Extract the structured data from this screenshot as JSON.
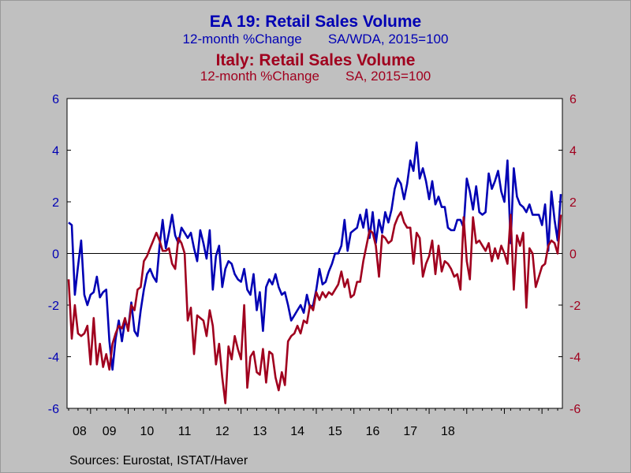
{
  "titles": {
    "ea_title": "EA 19: Retail Sales Volume",
    "ea_subtitle": "12-month %Change       SA/WDA, 2015=100",
    "italy_title": "Italy: Retail Sales Volume",
    "italy_subtitle": "12-month %Change       SA, 2015=100"
  },
  "source": "Sources:  Eurostat, ISTAT/Haver",
  "colors": {
    "ea": "#0000b4",
    "italy": "#a0001e",
    "background": "#c0c0c0",
    "plot": "#ffffff"
  },
  "chart_data": {
    "type": "line",
    "x_axis": {
      "ticks": [
        "08",
        "09",
        "10",
        "11",
        "12",
        "13",
        "14",
        "15",
        "16",
        "17",
        "18"
      ],
      "start": "2008-06",
      "end": "2018-12"
    },
    "y_left": {
      "range": [
        -6,
        6
      ],
      "ticks": [
        "6",
        "4",
        "2",
        "0",
        "-2",
        "-4",
        "-6"
      ]
    },
    "y_right": {
      "range": [
        -6,
        6
      ],
      "ticks": [
        "6",
        "4",
        "2",
        "0",
        "-2",
        "-4",
        "-6"
      ]
    },
    "zero_line": true,
    "grid": false,
    "series": [
      {
        "name": "EA 19: Retail Sales Volume",
        "color": "#0000b4",
        "values": [
          1.2,
          1.1,
          -1.6,
          -0.5,
          0.5,
          -1.6,
          -2.0,
          -1.6,
          -1.5,
          -0.9,
          -1.7,
          -1.5,
          -1.4,
          -3.4,
          -4.5,
          -3.3,
          -2.6,
          -3.4,
          -2.6,
          -2.9,
          -1.9,
          -3.0,
          -3.2,
          -2.2,
          -1.4,
          -0.8,
          -0.6,
          -0.9,
          -1.1,
          0.3,
          1.3,
          0.2,
          0.8,
          1.5,
          0.7,
          0.4,
          1.0,
          0.8,
          0.6,
          0.8,
          0.2,
          -0.3,
          0.9,
          0.4,
          -0.2,
          0.9,
          -1.4,
          -0.1,
          0.3,
          -1.3,
          -0.6,
          -0.3,
          -0.4,
          -0.8,
          -1.0,
          -1.1,
          -0.6,
          -1.4,
          -1.6,
          -0.8,
          -2.2,
          -1.5,
          -3.0,
          -1.3,
          -1.0,
          -1.2,
          -0.8,
          -1.3,
          -1.6,
          -1.5,
          -2.0,
          -2.6,
          -2.4,
          -2.2,
          -2.0,
          -2.3,
          -1.6,
          -2.1,
          -2.0,
          -1.4,
          -0.6,
          -1.2,
          -1.1,
          -0.7,
          -0.4,
          0.0,
          0.0,
          0.3,
          1.3,
          0.1,
          0.8,
          0.9,
          1.0,
          1.5,
          1.0,
          1.7,
          0.6,
          1.6,
          0.4,
          1.3,
          0.8,
          1.6,
          1.2,
          1.7,
          2.5,
          2.9,
          2.7,
          2.1,
          2.7,
          3.6,
          3.2,
          4.3,
          2.9,
          3.3,
          2.8,
          2.1,
          2.8,
          1.9,
          2.2,
          1.8,
          1.8,
          1.0,
          0.9,
          0.9,
          1.3,
          1.3,
          1.0,
          2.9,
          2.4,
          1.7,
          2.6,
          1.6,
          1.5,
          1.6,
          3.1,
          2.5,
          2.8,
          3.2,
          2.4,
          2.0,
          3.6,
          0.4,
          3.3,
          2.2,
          1.9,
          1.8,
          1.6,
          1.9,
          1.5,
          1.5,
          1.5,
          1.1,
          1.9,
          0.1,
          2.4,
          1.3,
          0.5,
          2.3
        ]
      },
      {
        "name": "Italy: Retail Sales Volume",
        "color": "#a0001e",
        "values": [
          -1.0,
          -3.3,
          -2.0,
          -3.1,
          -3.2,
          -3.1,
          -2.8,
          -4.3,
          -2.5,
          -4.3,
          -3.5,
          -4.4,
          -3.9,
          -4.5,
          -3.5,
          -3.1,
          -2.8,
          -2.9,
          -2.5,
          -3.0,
          -2.0,
          -2.2,
          -1.4,
          -1.3,
          -0.3,
          -0.1,
          0.2,
          0.5,
          0.8,
          0.5,
          0.1,
          0.1,
          0.2,
          -0.4,
          -0.6,
          0.6,
          0.4,
          0.0,
          -2.6,
          -2.1,
          -3.9,
          -2.4,
          -2.5,
          -2.6,
          -3.2,
          -2.2,
          -2.8,
          -4.3,
          -3.5,
          -4.8,
          -5.8,
          -3.6,
          -4.1,
          -3.2,
          -3.7,
          -4.1,
          -2.0,
          -5.2,
          -4.0,
          -3.8,
          -4.6,
          -4.7,
          -3.7,
          -5.0,
          -3.8,
          -3.9,
          -4.8,
          -5.3,
          -4.6,
          -5.1,
          -3.4,
          -3.2,
          -3.1,
          -2.8,
          -3.1,
          -2.6,
          -2.7,
          -2.0,
          -2.2,
          -1.5,
          -1.8,
          -1.5,
          -1.7,
          -1.5,
          -1.6,
          -1.4,
          -1.2,
          -0.7,
          -1.3,
          -1.0,
          -1.7,
          -1.6,
          -1.1,
          -1.1,
          -0.3,
          0.3,
          0.9,
          0.8,
          0.3,
          -0.9,
          0.7,
          0.6,
          0.4,
          0.5,
          1.1,
          1.4,
          1.6,
          1.2,
          1.0,
          1.0,
          -0.4,
          0.8,
          0.6,
          -0.9,
          -0.4,
          -0.1,
          0.5,
          -0.8,
          0.3,
          -0.7,
          -0.3,
          -0.4,
          -0.6,
          -0.9,
          -0.8,
          -1.4,
          1.4,
          -0.3,
          -1.0,
          1.4,
          0.4,
          0.5,
          0.3,
          0.1,
          0.4,
          -0.3,
          0.2,
          -0.2,
          0.3,
          0.0,
          -0.4,
          1.5,
          -1.4,
          0.7,
          0.3,
          0.8,
          -2.1,
          0.2,
          0.0,
          -1.3,
          -0.9,
          -0.5,
          -0.4,
          0.3,
          0.5,
          0.4,
          0.0,
          1.5
        ]
      }
    ]
  }
}
